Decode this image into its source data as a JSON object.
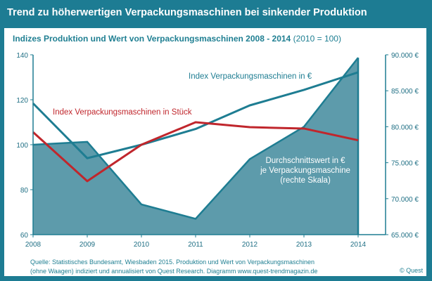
{
  "title": "Trend zu höherwertigen Verpackungsmaschinen bei sinkender Produktion",
  "subtitle": "Indizes Produktion und Wert von Verpackungsmaschinen 2008 - 2014",
  "subtitle_note": "(2010 = 100)",
  "source_line1": "Quelle: Statistisches Bundesamt, Wiesbaden 2015. Produktion und Wert von Verpackungsmaschinen",
  "source_line2": "(ohne Waagen) indiziert und annualisiert von Quest Research. Diagramm www.quest-trendmagazin.de",
  "copyright": "© Quest",
  "colors": {
    "frame": "#1d7c93",
    "area": "#5d9bab",
    "value_line": "#1e7d92",
    "units_line": "#c0262c"
  },
  "chart_data": {
    "type": "line",
    "categories": [
      "2008",
      "2009",
      "2010",
      "2011",
      "2012",
      "2013",
      "2014"
    ],
    "ylim_left": [
      60,
      140
    ],
    "yticks_left": [
      "60",
      "80",
      "100",
      "120",
      "140"
    ],
    "ylim_right": [
      65000,
      90000
    ],
    "yticks_right": [
      "65.000 €",
      "70.000 €",
      "75.000 €",
      "80.000 €",
      "85.000 €",
      "90.000 €"
    ],
    "grid": false,
    "series": [
      {
        "name": "Durchschnittswert  in € je Verpackungsmaschine (rechte Skala)",
        "label_lines": [
          "Durchschnittswert  in €",
          "je Verpackungsmaschine",
          "(rechte Skala)"
        ],
        "type": "area",
        "axis": "right",
        "values": [
          77500,
          77900,
          69200,
          67200,
          75500,
          80000,
          89600
        ]
      },
      {
        "name": "Index Verpackungsmaschinen in €",
        "type": "line",
        "axis": "left",
        "values": [
          118.4,
          94,
          100,
          107,
          117.5,
          124.4,
          132.2
        ]
      },
      {
        "name": "Index Verpackungsmaschinen in Stück",
        "type": "line",
        "axis": "left",
        "values": [
          105.6,
          83.8,
          100,
          110,
          107.8,
          107.2,
          102
        ]
      }
    ]
  }
}
